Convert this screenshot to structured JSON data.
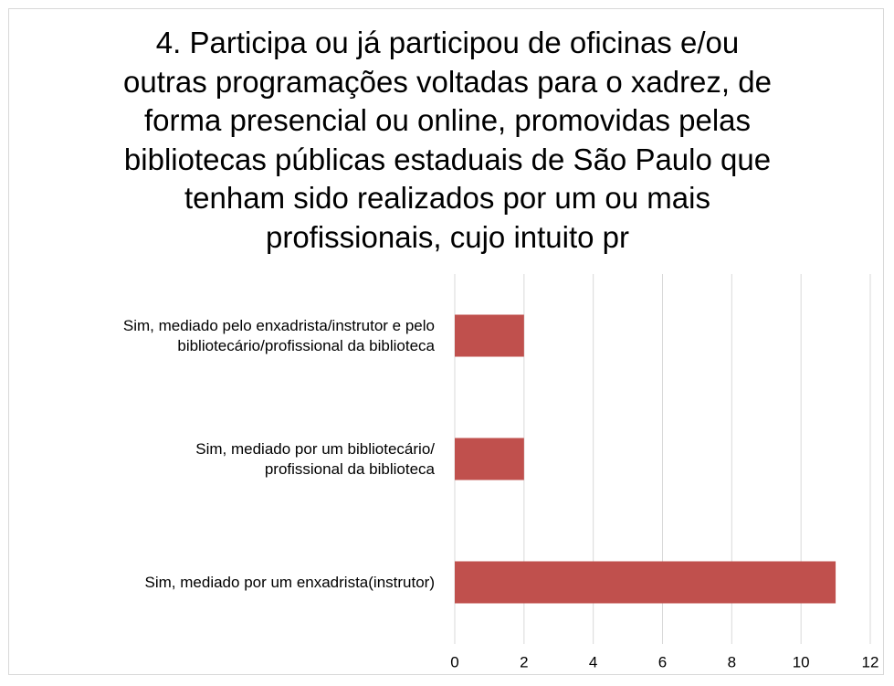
{
  "chart_data": {
    "type": "barh",
    "title": "4. Participa ou já participou de oficinas e/ou\noutras programações voltadas para o xadrez, de\nforma presencial ou online, promovidas pelas\nbibliotecas públicas estaduais de São Paulo que\ntenham sido realizados por um ou mais\nprofissionais, cujo intuito pr",
    "categories": [
      "Sim, mediado pelo enxadrista/instrutor e pelo\nbibliotecário/profissional da biblioteca",
      "Sim, mediado por um bibliotecário/\nprofissional da biblioteca",
      "Sim, mediado por um enxadrista(instrutor)"
    ],
    "values": [
      2,
      2,
      11
    ],
    "color": "#c0504d",
    "xlim": [
      0,
      12
    ],
    "xticks": [
      0,
      2,
      4,
      6,
      8,
      10,
      12
    ],
    "grid": true
  }
}
